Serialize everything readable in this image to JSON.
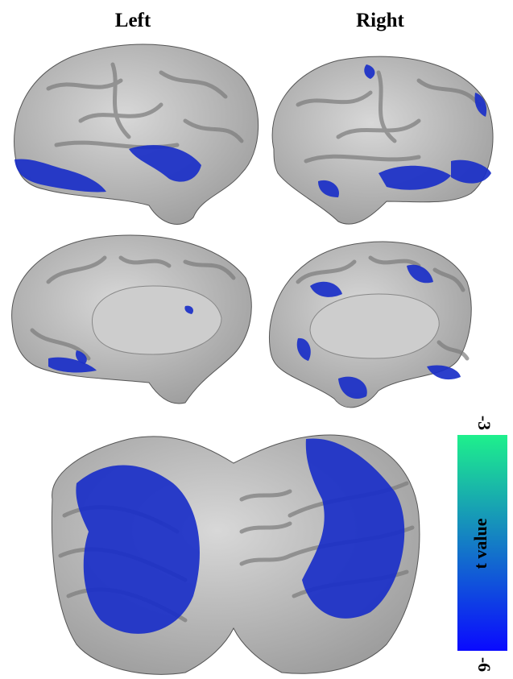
{
  "labels": {
    "left": "Left",
    "right": "Right"
  },
  "colorbar": {
    "title": "t value",
    "max": -3,
    "min": -6,
    "colors": [
      "#0a0aff",
      "#1ef08c"
    ]
  }
}
